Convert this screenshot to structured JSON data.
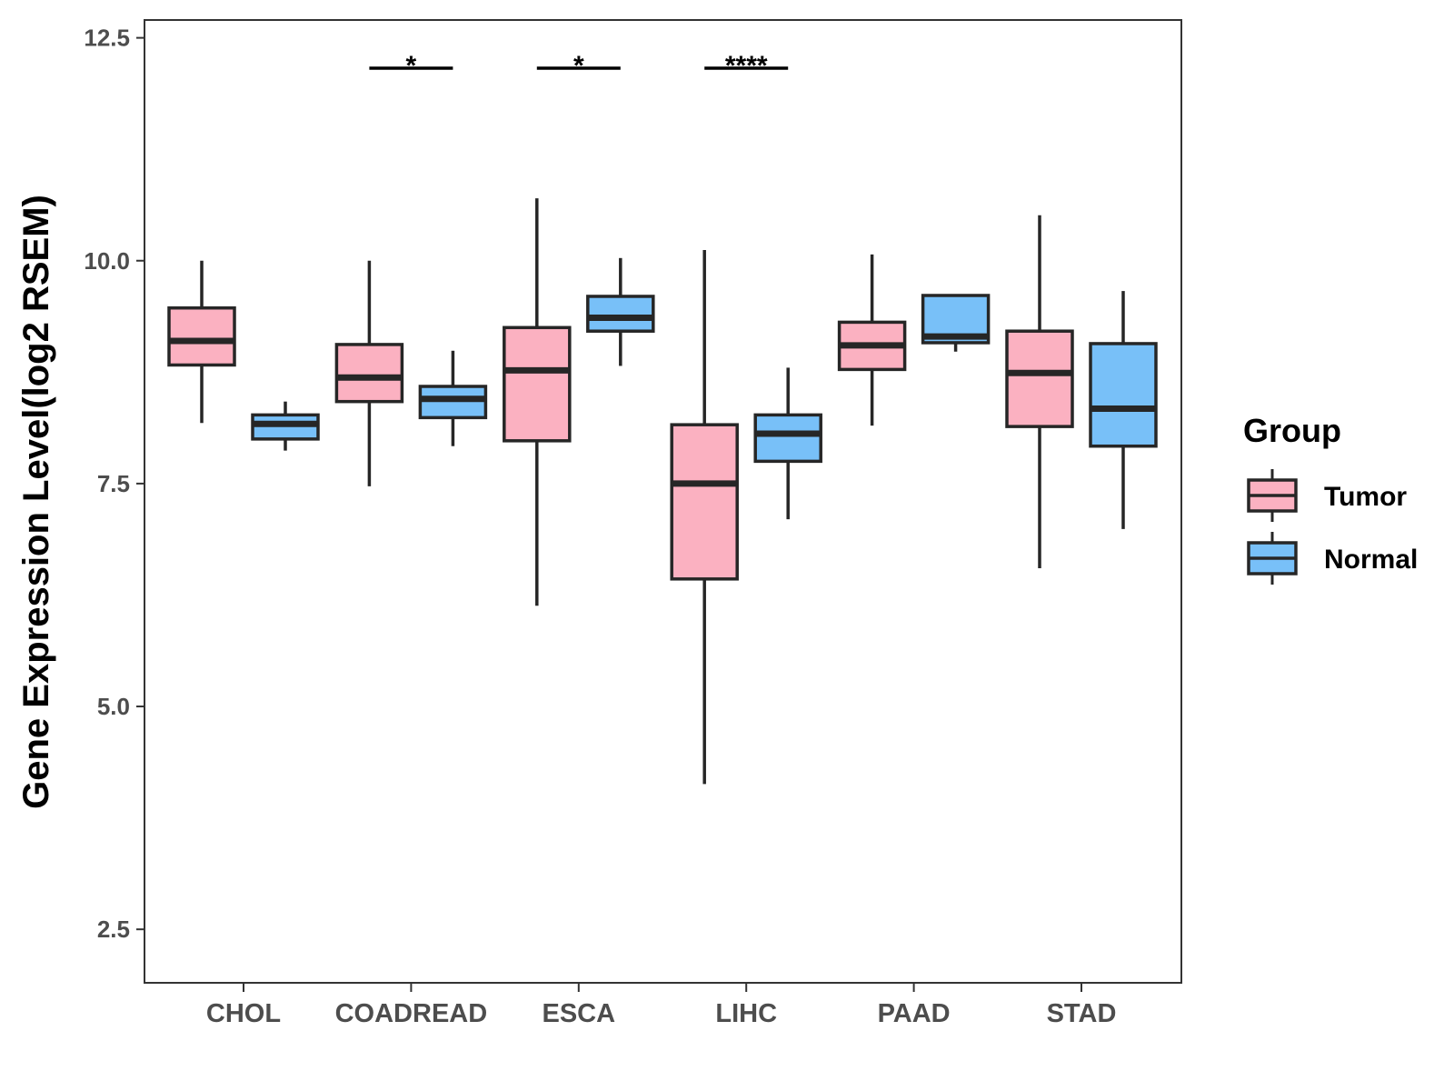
{
  "chart_data": {
    "type": "boxplot",
    "title": "",
    "xlabel": "",
    "ylabel": "Gene Expression Level(log2 RSEM)",
    "ylim": [
      1.9,
      12.7
    ],
    "yticks": [
      "2.5",
      "5.0",
      "7.5",
      "10.0",
      "12.5"
    ],
    "ytick_values": [
      2.5,
      5.0,
      7.5,
      10.0,
      12.5
    ],
    "grid": false,
    "categories": [
      "CHOL",
      "COADREAD",
      "ESCA",
      "LIHC",
      "PAAD",
      "STAD"
    ],
    "legend": {
      "title": "Group",
      "position": "right",
      "entries": [
        {
          "name": "Tumor",
          "color": "#fbb1c1"
        },
        {
          "name": "Normal",
          "color": "#78c0f8"
        }
      ]
    },
    "series": [
      {
        "name": "Tumor",
        "color": "#fbb1c1",
        "boxes": [
          {
            "min": 8.18,
            "q1": 8.83,
            "median": 9.1,
            "q3": 9.47,
            "max": 10.0
          },
          {
            "min": 7.47,
            "q1": 8.42,
            "median": 8.69,
            "q3": 9.06,
            "max": 10.0
          },
          {
            "min": 6.13,
            "q1": 7.98,
            "median": 8.77,
            "q3": 9.25,
            "max": 10.7
          },
          {
            "min": 4.13,
            "q1": 6.43,
            "median": 7.5,
            "q3": 8.16,
            "max": 10.12
          },
          {
            "min": 8.15,
            "q1": 8.78,
            "median": 9.05,
            "q3": 9.31,
            "max": 10.07
          },
          {
            "min": 6.55,
            "q1": 8.14,
            "median": 8.74,
            "q3": 9.21,
            "max": 10.51
          }
        ]
      },
      {
        "name": "Normal",
        "color": "#78c0f8",
        "boxes": [
          {
            "min": 7.87,
            "q1": 8.0,
            "median": 8.17,
            "q3": 8.27,
            "max": 8.42
          },
          {
            "min": 7.92,
            "q1": 8.24,
            "median": 8.45,
            "q3": 8.59,
            "max": 8.99
          },
          {
            "min": 8.82,
            "q1": 9.21,
            "median": 9.36,
            "q3": 9.6,
            "max": 10.03
          },
          {
            "min": 7.1,
            "q1": 7.75,
            "median": 8.06,
            "q3": 8.27,
            "max": 8.8
          },
          {
            "min": 8.98,
            "q1": 9.08,
            "median": 9.15,
            "q3": 9.61,
            "max": 9.61
          },
          {
            "min": 6.99,
            "q1": 7.92,
            "median": 8.34,
            "q3": 9.07,
            "max": 9.66
          }
        ]
      }
    ],
    "significance": [
      {
        "category": "COADREAD",
        "label": "*"
      },
      {
        "category": "ESCA",
        "label": "*"
      },
      {
        "category": "LIHC",
        "label": "****"
      }
    ]
  }
}
